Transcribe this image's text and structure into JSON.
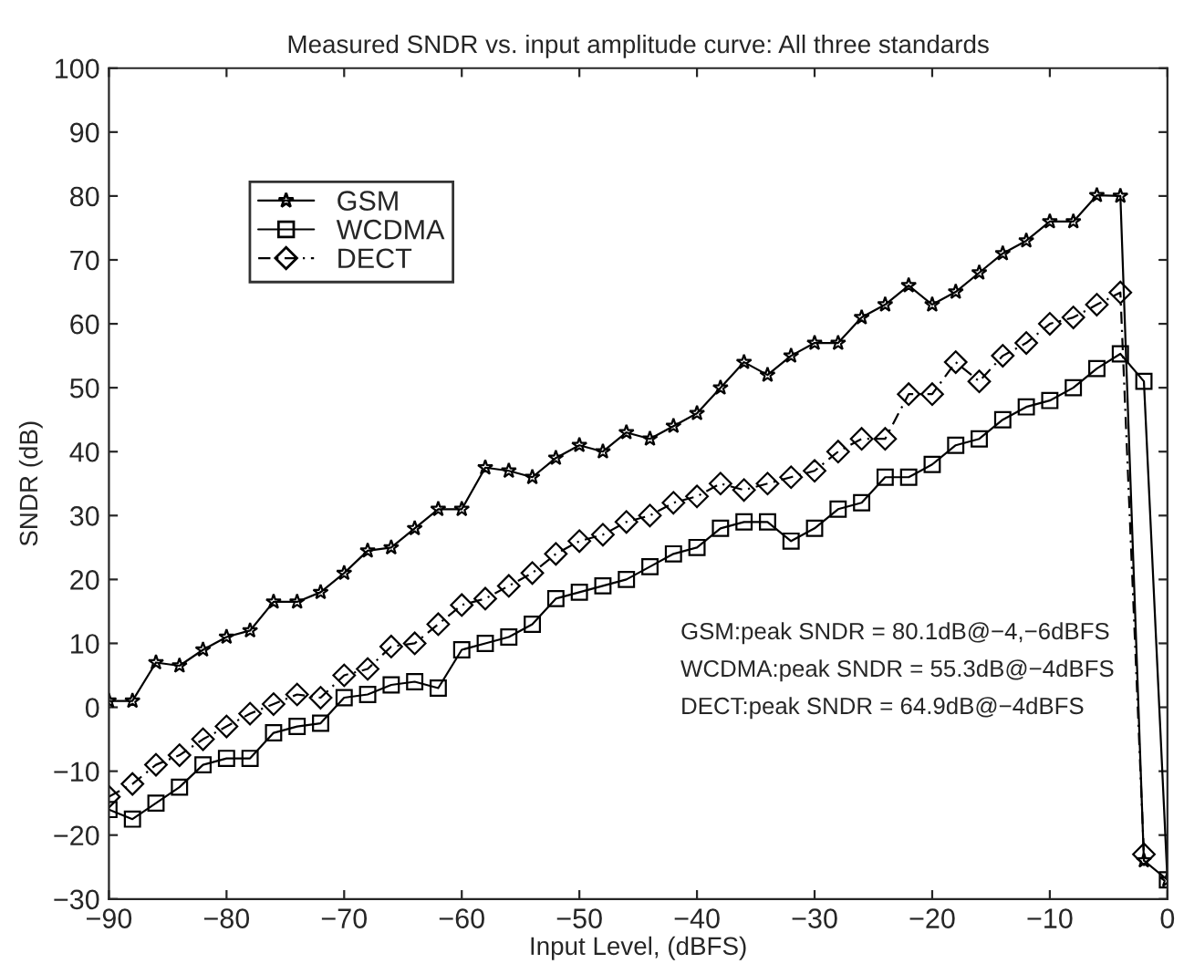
{
  "chart_data": {
    "type": "line",
    "title": "Measured SNDR vs. input amplitude curve: All three standards",
    "xlabel": "Input Level, (dBFS)",
    "ylabel": "SNDR (dB)",
    "xlim": [
      -90,
      0
    ],
    "xticks": [
      -90,
      -80,
      -70,
      -60,
      -50,
      -40,
      -30,
      -20,
      -10,
      0
    ],
    "ylim": [
      -30,
      100
    ],
    "yticks": [
      -30,
      -20,
      -10,
      0,
      10,
      20,
      30,
      40,
      50,
      60,
      70,
      80,
      90,
      100
    ],
    "grid": false,
    "legend": "top left",
    "series": [
      {
        "name": "GSM",
        "color": "#000000",
        "marker": "star",
        "line_style": "solid",
        "x": [
          -90,
          -88,
          -86,
          -84,
          -82,
          -80,
          -78,
          -76,
          -74,
          -72,
          -70,
          -68,
          -66,
          -64,
          -62,
          -60,
          -58,
          -56,
          -54,
          -52,
          -50,
          -48,
          -46,
          -44,
          -42,
          -40,
          -38,
          -36,
          -34,
          -32,
          -30,
          -28,
          -26,
          -24,
          -22,
          -20,
          -18,
          -16,
          -14,
          -12,
          -10,
          -8,
          -6,
          -4,
          -2,
          0
        ],
        "values": [
          1,
          1,
          7,
          6.5,
          9,
          11,
          12,
          16.5,
          16.5,
          18,
          21,
          24.5,
          25,
          28,
          31,
          31,
          37.5,
          37,
          36,
          39,
          41,
          40,
          43,
          42,
          44,
          46,
          50,
          54,
          52,
          55,
          57,
          57,
          61,
          63,
          66,
          63,
          65,
          68,
          71,
          73,
          76,
          76,
          80.1,
          80,
          -24,
          -27
        ]
      },
      {
        "name": "WCDMA",
        "color": "#000000",
        "marker": "square",
        "line_style": "solid",
        "x": [
          -90,
          -88,
          -86,
          -84,
          -82,
          -80,
          -78,
          -76,
          -74,
          -72,
          -70,
          -68,
          -66,
          -64,
          -62,
          -60,
          -58,
          -56,
          -54,
          -52,
          -50,
          -48,
          -46,
          -44,
          -42,
          -40,
          -38,
          -36,
          -34,
          -32,
          -30,
          -28,
          -26,
          -24,
          -22,
          -20,
          -18,
          -16,
          -14,
          -12,
          -10,
          -8,
          -6,
          -4,
          -2,
          0
        ],
        "values": [
          -16,
          -17.5,
          -15,
          -12.5,
          -9,
          -8,
          -8,
          -4,
          -3,
          -2.5,
          1.5,
          2,
          3.5,
          4,
          3,
          9,
          10,
          11,
          13,
          17,
          18,
          19,
          20,
          22,
          24,
          25,
          28,
          29,
          29,
          26,
          28,
          31,
          32,
          36,
          36,
          38,
          41,
          42,
          45,
          47,
          48,
          50,
          53,
          55.3,
          51,
          -27
        ]
      },
      {
        "name": "DECT",
        "color": "#000000",
        "marker": "diamond",
        "line_style": "dashed",
        "x": [
          -90,
          -88,
          -86,
          -84,
          -82,
          -80,
          -78,
          -76,
          -74,
          -72,
          -70,
          -68,
          -66,
          -64,
          -62,
          -60,
          -58,
          -56,
          -54,
          -52,
          -50,
          -48,
          -46,
          -44,
          -42,
          -40,
          -38,
          -36,
          -34,
          -32,
          -30,
          -28,
          -26,
          -24,
          -22,
          -20,
          -18,
          -16,
          -14,
          -12,
          -10,
          -8,
          -6,
          -4,
          -2
        ],
        "values": [
          -14,
          -12,
          -9,
          -7.5,
          -5,
          -3,
          -1,
          0.5,
          2,
          1.5,
          5,
          6,
          9.5,
          10,
          13,
          16,
          17,
          19,
          21,
          24,
          26,
          27,
          29,
          30,
          32,
          33,
          35,
          34,
          35,
          36,
          37,
          40,
          42,
          42,
          49,
          49,
          54,
          51,
          55,
          57,
          60,
          61,
          63,
          64.9,
          -23
        ]
      }
    ],
    "annotations": [
      "GSM:peak SNDR = 80.1dB@−4,−6dBFS",
      "WCDMA:peak SNDR = 55.3dB@−4dBFS",
      "DECT:peak SNDR = 64.9dB@−4dBFS"
    ]
  }
}
